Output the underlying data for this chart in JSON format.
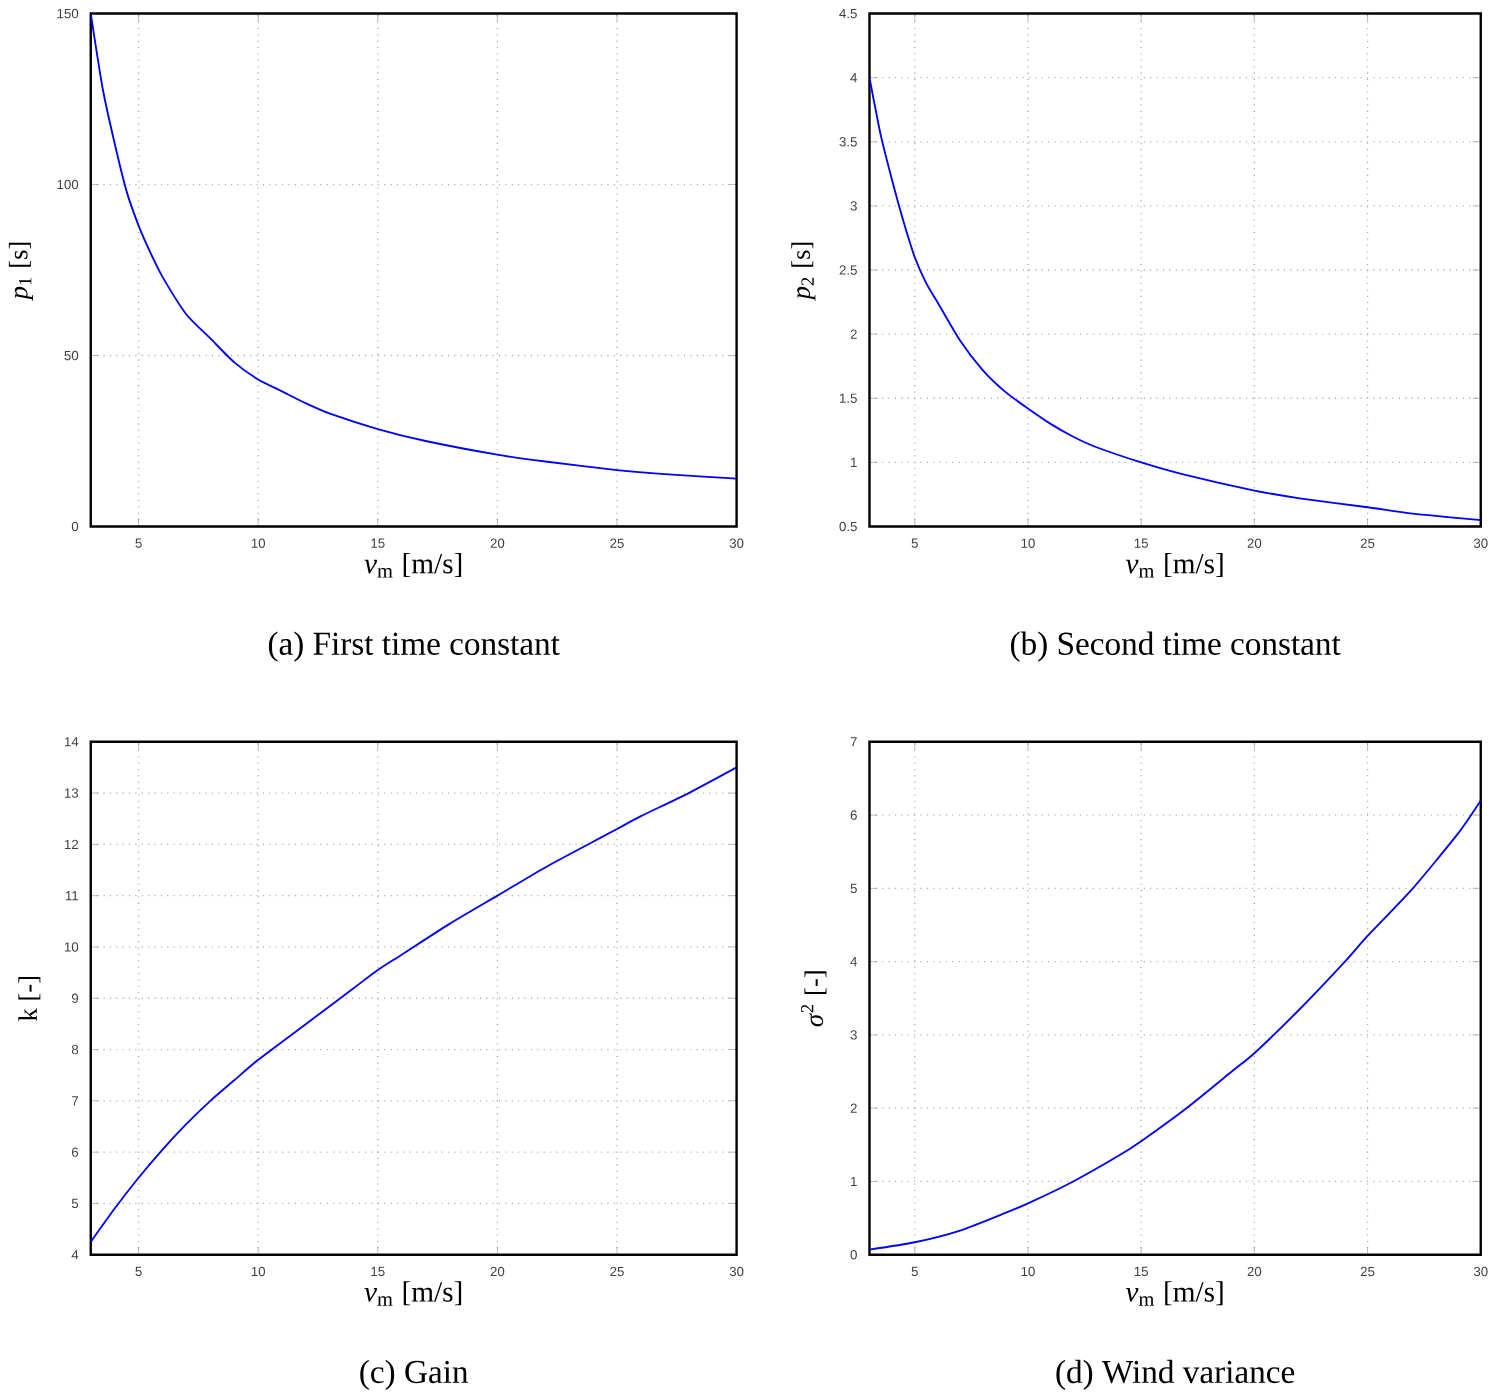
{
  "chart_data": [
    {
      "type": "line",
      "title": "(a) First time constant",
      "xlabel": "*v*$_{m}$ [m/s]",
      "ylabel": "*p*$_{1}$ [s]",
      "color": "#0000ff",
      "grid": true,
      "xlim": [
        3,
        30
      ],
      "xticks": [
        5,
        10,
        15,
        20,
        25,
        30
      ],
      "ylim": [
        0,
        150
      ],
      "yticks": [
        0,
        50,
        100,
        150
      ],
      "x": [
        3,
        3.5,
        4,
        4.5,
        5,
        5.5,
        6,
        7,
        8,
        9,
        10,
        11,
        12,
        13,
        15,
        17,
        20,
        22,
        25,
        27,
        30
      ],
      "values": [
        150,
        128,
        112,
        98,
        88,
        80,
        73,
        62,
        55,
        48,
        43,
        39.5,
        36,
        33,
        28.5,
        25,
        21,
        19,
        16.5,
        15.3,
        14
      ]
    },
    {
      "type": "line",
      "title": "(b) Second time constant",
      "xlabel": "*v*$_{m}$ [m/s]",
      "ylabel": "*p*$_{2}$ [s]",
      "color": "#0000ff",
      "grid": true,
      "xlim": [
        3,
        30
      ],
      "xticks": [
        5,
        10,
        15,
        20,
        25,
        30
      ],
      "ylim": [
        0.5,
        4.5
      ],
      "yticks": [
        0.5,
        1,
        1.5,
        2,
        2.5,
        3,
        3.5,
        4,
        4.5
      ],
      "x": [
        3,
        3.5,
        4,
        4.5,
        5,
        5.5,
        6,
        7,
        8,
        9,
        10,
        11,
        12,
        13,
        15,
        17,
        20,
        22,
        25,
        27,
        30
      ],
      "values": [
        4.0,
        3.55,
        3.2,
        2.88,
        2.6,
        2.4,
        2.25,
        1.95,
        1.72,
        1.55,
        1.42,
        1.3,
        1.2,
        1.12,
        1.0,
        0.9,
        0.78,
        0.72,
        0.65,
        0.6,
        0.55
      ]
    },
    {
      "type": "line",
      "title": "(c) Gain",
      "xlabel": "*v*$_{m}$ [m/s]",
      "ylabel": "k [-]",
      "color": "#0000ff",
      "grid": true,
      "xlim": [
        3,
        30
      ],
      "xticks": [
        5,
        10,
        15,
        20,
        25,
        30
      ],
      "ylim": [
        4,
        14
      ],
      "yticks": [
        4,
        5,
        6,
        7,
        8,
        9,
        10,
        11,
        12,
        13,
        14
      ],
      "x": [
        3,
        4,
        5,
        6,
        7,
        8,
        9,
        10,
        12,
        14,
        15,
        16,
        18,
        20,
        22,
        24,
        25,
        26,
        28,
        30
      ],
      "values": [
        4.25,
        4.9,
        5.5,
        6.05,
        6.55,
        7.0,
        7.4,
        7.8,
        8.5,
        9.2,
        9.55,
        9.85,
        10.45,
        11.0,
        11.55,
        12.05,
        12.3,
        12.55,
        13.0,
        13.5
      ]
    },
    {
      "type": "line",
      "title": "(d) Wind variance",
      "xlabel": "*v*$_{m}$ [m/s]",
      "ylabel": "*σ*$^{2}$ [-]",
      "color": "#0000ff",
      "grid": true,
      "xlim": [
        3,
        30
      ],
      "xticks": [
        5,
        10,
        15,
        20,
        25,
        30
      ],
      "ylim": [
        0,
        7
      ],
      "yticks": [
        0,
        1,
        2,
        3,
        4,
        5,
        6,
        7
      ],
      "x": [
        3,
        5,
        7,
        9,
        10,
        12,
        14,
        15,
        17,
        19,
        20,
        22,
        24,
        25,
        27,
        29,
        30
      ],
      "values": [
        0.07,
        0.17,
        0.33,
        0.57,
        0.7,
        1.0,
        1.35,
        1.55,
        2.0,
        2.5,
        2.75,
        3.35,
        4.0,
        4.35,
        5.0,
        5.75,
        6.2
      ]
    }
  ]
}
